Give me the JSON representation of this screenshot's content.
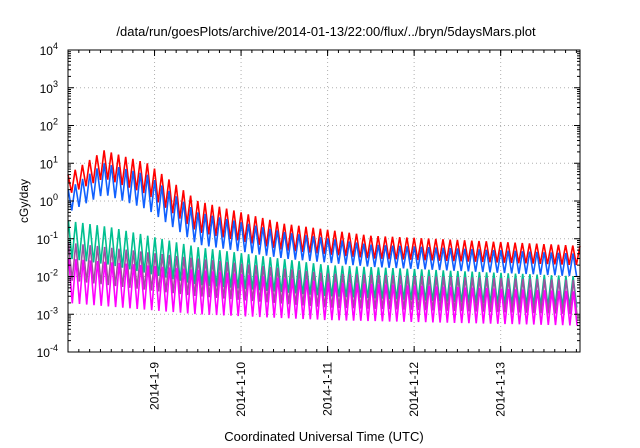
{
  "chart_data": {
    "type": "line",
    "title": "/data/run/goesPlots/archive/2014-01-13/22:00/flux/../bryn/5daysMars.plot",
    "xlabel": "Coordinated Universal Time (UTC)",
    "ylabel": "cGy/day",
    "xlim": [
      "2014-01-08 00:00",
      "2014-01-13 22:00"
    ],
    "ylim": [
      0.0001,
      10000
    ],
    "yscale": "log",
    "grid": true,
    "x_ticks": [
      "2014-1-9",
      "2014-1-10",
      "2014-1-11",
      "2014-1-12",
      "2014-1-13"
    ],
    "y_ticks": [
      {
        "value": 0.0001,
        "base": "10",
        "exp": "-4"
      },
      {
        "value": 0.001,
        "base": "10",
        "exp": "-3"
      },
      {
        "value": 0.01,
        "base": "10",
        "exp": "-2"
      },
      {
        "value": 0.1,
        "base": "10",
        "exp": "-1"
      },
      {
        "value": 1,
        "base": "10",
        "exp": "0"
      },
      {
        "value": 10,
        "base": "10",
        "exp": "1"
      },
      {
        "value": 100,
        "base": "10",
        "exp": "2"
      },
      {
        "value": 1000,
        "base": "10",
        "exp": "3"
      },
      {
        "value": 10000,
        "base": "10",
        "exp": "4"
      }
    ],
    "series": [
      {
        "color": "#ff0000",
        "envelope": [
          [
            "2014-01-08 00:00",
            5,
            1.5
          ],
          [
            "2014-01-08 10:00",
            22,
            4
          ],
          [
            "2014-01-08 22:00",
            10,
            1.5
          ],
          [
            "2014-01-09 12:00",
            1,
            0.15
          ],
          [
            "2014-01-10 12:00",
            0.25,
            0.05
          ],
          [
            "2014-01-11 12:00",
            0.12,
            0.03
          ],
          [
            "2014-01-13 22:00",
            0.065,
            0.02
          ]
        ]
      },
      {
        "color": "#1060ff",
        "envelope": [
          [
            "2014-01-08 00:00",
            2,
            0.5
          ],
          [
            "2014-01-08 10:00",
            10,
            1.5
          ],
          [
            "2014-01-08 22:00",
            5,
            0.6
          ],
          [
            "2014-01-09 12:00",
            0.5,
            0.07
          ],
          [
            "2014-01-10 12:00",
            0.15,
            0.03
          ],
          [
            "2014-01-11 12:00",
            0.07,
            0.018
          ],
          [
            "2014-01-13 22:00",
            0.04,
            0.01
          ]
        ]
      },
      {
        "color": "#00c090",
        "envelope": [
          [
            "2014-01-08 00:00",
            0.3,
            0.03
          ],
          [
            "2014-01-08 12:00",
            0.2,
            0.02
          ],
          [
            "2014-01-09 12:00",
            0.06,
            0.006
          ],
          [
            "2014-01-11 00:00",
            0.02,
            0.003
          ],
          [
            "2014-01-13 22:00",
            0.01,
            0.0015
          ]
        ]
      },
      {
        "color": "#a050a0",
        "envelope": [
          [
            "2014-01-08 00:00",
            0.08,
            0.008
          ],
          [
            "2014-01-09 12:00",
            0.03,
            0.003
          ],
          [
            "2014-01-11 00:00",
            0.012,
            0.0015
          ],
          [
            "2014-01-13 22:00",
            0.008,
            0.001
          ]
        ]
      },
      {
        "color": "#ff00ff",
        "envelope": [
          [
            "2014-01-08 00:00",
            0.03,
            0.002
          ],
          [
            "2014-01-09 12:00",
            0.015,
            0.001
          ],
          [
            "2014-01-11 00:00",
            0.007,
            0.0007
          ],
          [
            "2014-01-13 22:00",
            0.004,
            0.0005
          ]
        ]
      }
    ]
  }
}
